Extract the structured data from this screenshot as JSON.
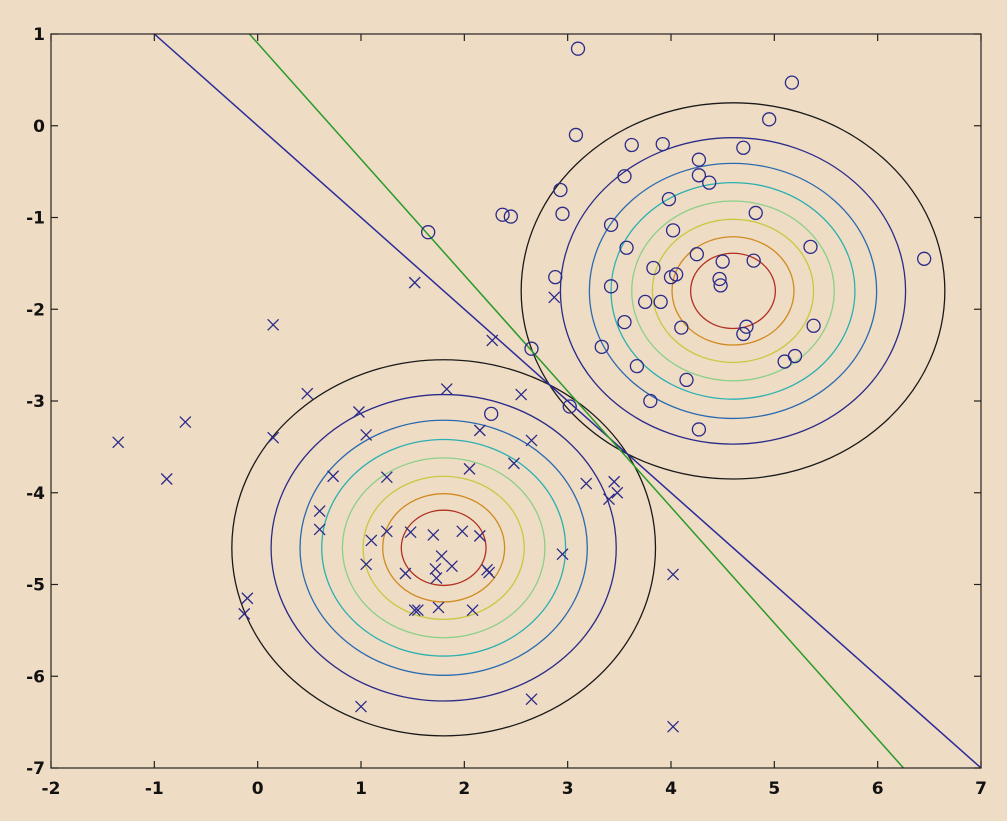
{
  "chart_data": {
    "type": "scatter",
    "title": "",
    "xlabel": "",
    "ylabel": "",
    "xlim": [
      -2,
      7
    ],
    "ylim": [
      -7,
      1
    ],
    "grid": false,
    "x_ticks": [
      -2,
      -1,
      0,
      1,
      2,
      3,
      4,
      5,
      6,
      7
    ],
    "y_ticks": [
      1,
      0,
      -1,
      -2,
      -3,
      -4,
      -5,
      -6,
      -7
    ],
    "colors": {
      "background": "#efdcc4",
      "markers": "#2a2a8a",
      "boundary_blue": "#2b2b9a",
      "boundary_green": "#2a9a2a",
      "contours": [
        "#1a1a1a",
        "#2a2a8a",
        "#2a6ab0",
        "#2ab0b0",
        "#8ad08a",
        "#c8c840",
        "#d08a20",
        "#b03020",
        "#6a1a10"
      ]
    },
    "series": [
      {
        "marker": "x",
        "points": [
          [
            -1.35,
            -3.45
          ],
          [
            -0.88,
            -3.85
          ],
          [
            -0.7,
            -3.23
          ],
          [
            0.15,
            -2.17
          ],
          [
            0.15,
            -3.4
          ],
          [
            -0.1,
            -5.15
          ],
          [
            -0.13,
            -5.32
          ],
          [
            0.48,
            -2.92
          ],
          [
            0.6,
            -4.2
          ],
          [
            0.6,
            -4.4
          ],
          [
            0.73,
            -3.82
          ],
          [
            0.98,
            -3.12
          ],
          [
            1.05,
            -3.37
          ],
          [
            1.1,
            -4.52
          ],
          [
            1.05,
            -4.78
          ],
          [
            1.25,
            -3.83
          ],
          [
            1.25,
            -4.42
          ],
          [
            1.43,
            -4.88
          ],
          [
            1.48,
            -4.43
          ],
          [
            1.52,
            -5.28
          ],
          [
            1.55,
            -5.28
          ],
          [
            1.52,
            -1.71
          ],
          [
            1.7,
            -4.46
          ],
          [
            1.72,
            -4.83
          ],
          [
            1.73,
            -4.93
          ],
          [
            1.78,
            -4.69
          ],
          [
            1.75,
            -5.25
          ],
          [
            1.83,
            -2.87
          ],
          [
            1.88,
            -4.8
          ],
          [
            1.98,
            -4.42
          ],
          [
            2.05,
            -3.74
          ],
          [
            2.08,
            -5.28
          ],
          [
            2.15,
            -4.47
          ],
          [
            2.15,
            -3.32
          ],
          [
            2.22,
            -4.84
          ],
          [
            2.24,
            -4.87
          ],
          [
            2.27,
            -2.34
          ],
          [
            2.48,
            -3.68
          ],
          [
            2.55,
            -2.93
          ],
          [
            2.65,
            -3.43
          ],
          [
            2.65,
            -6.25
          ],
          [
            2.95,
            -4.67
          ],
          [
            2.87,
            -1.87
          ],
          [
            3.18,
            -3.9
          ],
          [
            3.4,
            -4.07
          ],
          [
            3.45,
            -3.88
          ],
          [
            3.48,
            -4.0
          ],
          [
            4.02,
            -4.89
          ],
          [
            4.02,
            -6.55
          ],
          [
            1.0,
            -6.33
          ]
        ]
      },
      {
        "marker": "o",
        "points": [
          [
            3.1,
            0.84
          ],
          [
            5.17,
            0.47
          ],
          [
            4.95,
            0.07
          ],
          [
            3.08,
            -0.1
          ],
          [
            3.62,
            -0.21
          ],
          [
            3.92,
            -0.2
          ],
          [
            4.7,
            -0.24
          ],
          [
            4.27,
            -0.37
          ],
          [
            2.93,
            -0.7
          ],
          [
            3.55,
            -0.55
          ],
          [
            4.27,
            -0.54
          ],
          [
            4.37,
            -0.62
          ],
          [
            2.37,
            -0.97
          ],
          [
            2.45,
            -0.99
          ],
          [
            2.95,
            -0.96
          ],
          [
            3.98,
            -0.8
          ],
          [
            4.82,
            -0.95
          ],
          [
            1.65,
            -1.16
          ],
          [
            3.42,
            -1.08
          ],
          [
            4.02,
            -1.14
          ],
          [
            3.57,
            -1.33
          ],
          [
            5.35,
            -1.32
          ],
          [
            4.25,
            -1.4
          ],
          [
            3.83,
            -1.55
          ],
          [
            4.05,
            -1.62
          ],
          [
            4.5,
            -1.48
          ],
          [
            4.8,
            -1.47
          ],
          [
            4.0,
            -1.65
          ],
          [
            4.47,
            -1.67
          ],
          [
            4.48,
            -1.74
          ],
          [
            6.45,
            -1.45
          ],
          [
            2.88,
            -1.65
          ],
          [
            3.42,
            -1.75
          ],
          [
            3.75,
            -1.92
          ],
          [
            3.9,
            -1.92
          ],
          [
            3.55,
            -2.14
          ],
          [
            4.1,
            -2.2
          ],
          [
            4.73,
            -2.19
          ],
          [
            4.7,
            -2.27
          ],
          [
            5.38,
            -2.18
          ],
          [
            5.2,
            -2.51
          ],
          [
            5.1,
            -2.57
          ],
          [
            3.33,
            -2.41
          ],
          [
            3.67,
            -2.62
          ],
          [
            4.15,
            -2.77
          ],
          [
            2.65,
            -2.43
          ],
          [
            3.8,
            -3.0
          ],
          [
            3.02,
            -3.06
          ],
          [
            2.26,
            -3.14
          ],
          [
            4.27,
            -3.31
          ]
        ]
      }
    ],
    "contour_groups": [
      {
        "center": [
          1.8,
          -4.6
        ],
        "radii": [
          2.05,
          1.67,
          1.39,
          1.18,
          0.98,
          0.78,
          0.59,
          0.41
        ]
      },
      {
        "center": [
          4.6,
          -1.8
        ],
        "radii": [
          2.05,
          1.67,
          1.39,
          1.18,
          0.98,
          0.78,
          0.59,
          0.41
        ]
      }
    ],
    "decision_lines": [
      {
        "name": "",
        "color": "#2b2b9a",
        "from": [
          -1.0,
          1.0
        ],
        "to": [
          7.0,
          -7.0
        ]
      },
      {
        "name": "",
        "color": "#2a9a2a",
        "from": [
          -0.08,
          1.0
        ],
        "to": [
          6.25,
          -7.0
        ]
      }
    ]
  }
}
